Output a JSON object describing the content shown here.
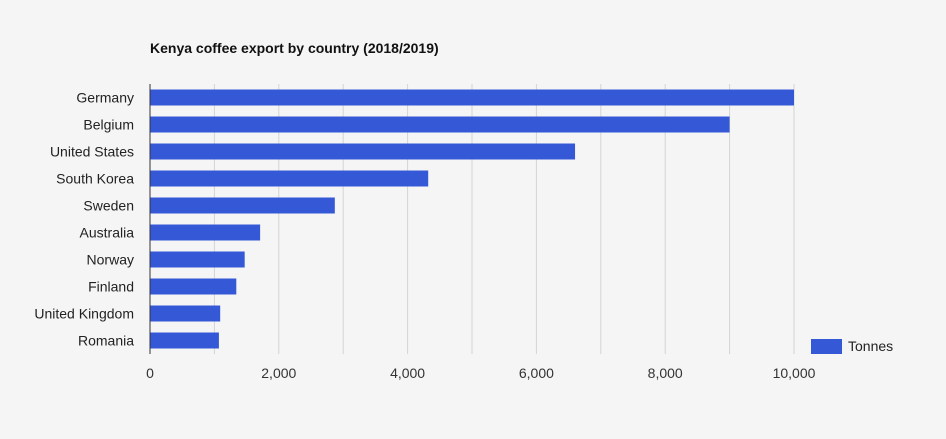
{
  "chart_data": {
    "type": "bar",
    "orientation": "horizontal",
    "title": "Kenya coffee export by country (2018/2019)",
    "xlabel": "",
    "ylabel": "",
    "categories": [
      "Germany",
      "Belgium",
      "United States",
      "South Korea",
      "Sweden",
      "Australia",
      "Norway",
      "Finland",
      "United Kingdom",
      "Romania"
    ],
    "series": [
      {
        "name": "Tonnes",
        "color": "#3559d6",
        "values": [
          10000,
          9000,
          6600,
          4320,
          2870,
          1710,
          1470,
          1340,
          1090,
          1070
        ]
      }
    ],
    "xlim": [
      0,
      10000
    ],
    "xticks": [
      0,
      2000,
      4000,
      6000,
      8000,
      10000
    ],
    "xtick_labels": [
      "0",
      "2,000",
      "4,000",
      "6,000",
      "8,000",
      "10,000"
    ],
    "grid": true,
    "legend_position": "bottom-right"
  }
}
